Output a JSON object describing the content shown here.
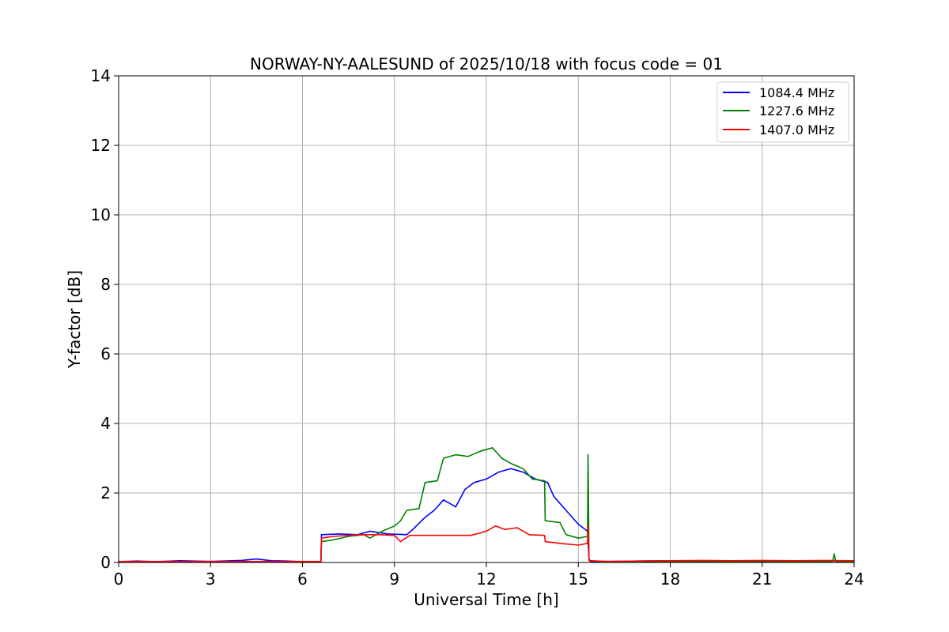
{
  "chart_data": {
    "type": "line",
    "title": "NORWAY-NY-AALESUND of 2025/10/18 with focus code = 01",
    "xlabel": "Universal Time [h]",
    "ylabel": "Y-factor [dB]",
    "xlim": [
      0,
      24
    ],
    "ylim": [
      0,
      14
    ],
    "xticks": [
      0,
      3,
      6,
      9,
      12,
      15,
      18,
      21,
      24
    ],
    "yticks": [
      0,
      2,
      4,
      6,
      8,
      10,
      12,
      14
    ],
    "xtick_labels": [
      "0",
      "3",
      "6",
      "9",
      "12",
      "15",
      "18",
      "21",
      "24"
    ],
    "ytick_labels": [
      "0",
      "2",
      "4",
      "6",
      "8",
      "10",
      "12",
      "14"
    ],
    "grid": true,
    "legend_position": "top-right",
    "series": [
      {
        "name": "1084.4 MHz",
        "color": "#0000ff",
        "points": [
          [
            0,
            0.02
          ],
          [
            0.6,
            0.04
          ],
          [
            1.2,
            0.02
          ],
          [
            2.0,
            0.05
          ],
          [
            3.0,
            0.03
          ],
          [
            4.0,
            0.06
          ],
          [
            4.5,
            0.1
          ],
          [
            5.0,
            0.05
          ],
          [
            5.5,
            0.04
          ],
          [
            6.0,
            0.02
          ],
          [
            6.6,
            0.02
          ],
          [
            6.62,
            0.8
          ],
          [
            7.2,
            0.82
          ],
          [
            7.8,
            0.8
          ],
          [
            8.2,
            0.9
          ],
          [
            8.8,
            0.82
          ],
          [
            9.4,
            0.8
          ],
          [
            9.6,
            0.95
          ],
          [
            10.0,
            1.3
          ],
          [
            10.3,
            1.5
          ],
          [
            10.6,
            1.8
          ],
          [
            11.0,
            1.6
          ],
          [
            11.3,
            2.1
          ],
          [
            11.6,
            2.3
          ],
          [
            12.0,
            2.4
          ],
          [
            12.4,
            2.6
          ],
          [
            12.8,
            2.7
          ],
          [
            13.2,
            2.6
          ],
          [
            13.6,
            2.4
          ],
          [
            14.0,
            2.3
          ],
          [
            14.2,
            1.9
          ],
          [
            14.6,
            1.5
          ],
          [
            15.0,
            1.1
          ],
          [
            15.3,
            0.9
          ],
          [
            15.35,
            0.1
          ],
          [
            15.4,
            0.03
          ],
          [
            16.0,
            0.03
          ],
          [
            17.0,
            0.04
          ],
          [
            18.0,
            0.05
          ],
          [
            19.0,
            0.04
          ],
          [
            20.0,
            0.05
          ],
          [
            21.0,
            0.04
          ],
          [
            22.0,
            0.05
          ],
          [
            23.0,
            0.04
          ],
          [
            24.0,
            0.05
          ]
        ]
      },
      {
        "name": "1227.6 MHz",
        "color": "#008000",
        "points": [
          [
            0,
            0.02
          ],
          [
            3.0,
            0.02
          ],
          [
            6.0,
            0.02
          ],
          [
            6.6,
            0.02
          ],
          [
            6.62,
            0.6
          ],
          [
            7.0,
            0.65
          ],
          [
            7.5,
            0.75
          ],
          [
            8.0,
            0.8
          ],
          [
            8.2,
            0.7
          ],
          [
            8.6,
            0.9
          ],
          [
            9.0,
            1.05
          ],
          [
            9.2,
            1.2
          ],
          [
            9.4,
            1.5
          ],
          [
            9.8,
            1.55
          ],
          [
            10.0,
            2.3
          ],
          [
            10.4,
            2.35
          ],
          [
            10.6,
            3.0
          ],
          [
            11.0,
            3.1
          ],
          [
            11.4,
            3.05
          ],
          [
            11.8,
            3.2
          ],
          [
            12.2,
            3.3
          ],
          [
            12.5,
            3.0
          ],
          [
            12.8,
            2.85
          ],
          [
            13.2,
            2.7
          ],
          [
            13.5,
            2.4
          ],
          [
            13.9,
            2.35
          ],
          [
            13.92,
            1.2
          ],
          [
            14.4,
            1.15
          ],
          [
            14.6,
            0.8
          ],
          [
            15.0,
            0.7
          ],
          [
            15.3,
            0.75
          ],
          [
            15.32,
            3.1
          ],
          [
            15.35,
            0.05
          ],
          [
            16.0,
            0.02
          ],
          [
            18.0,
            0.02
          ],
          [
            20.0,
            0.02
          ],
          [
            22.0,
            0.02
          ],
          [
            23.3,
            0.03
          ],
          [
            23.35,
            0.25
          ],
          [
            23.4,
            0.03
          ],
          [
            24.0,
            0.02
          ]
        ]
      },
      {
        "name": "1407.0 MHz",
        "color": "#ff0000",
        "points": [
          [
            0,
            0.03
          ],
          [
            2.0,
            0.03
          ],
          [
            4.0,
            0.03
          ],
          [
            6.0,
            0.03
          ],
          [
            6.6,
            0.03
          ],
          [
            6.62,
            0.7
          ],
          [
            7.0,
            0.75
          ],
          [
            7.5,
            0.78
          ],
          [
            8.0,
            0.8
          ],
          [
            8.5,
            0.8
          ],
          [
            9.0,
            0.78
          ],
          [
            9.2,
            0.6
          ],
          [
            9.5,
            0.78
          ],
          [
            10.0,
            0.78
          ],
          [
            11.0,
            0.78
          ],
          [
            11.5,
            0.78
          ],
          [
            12.0,
            0.9
          ],
          [
            12.3,
            1.05
          ],
          [
            12.6,
            0.95
          ],
          [
            13.0,
            1.0
          ],
          [
            13.4,
            0.8
          ],
          [
            13.9,
            0.78
          ],
          [
            13.92,
            0.6
          ],
          [
            14.4,
            0.55
          ],
          [
            15.0,
            0.5
          ],
          [
            15.3,
            0.55
          ],
          [
            15.32,
            1.05
          ],
          [
            15.35,
            0.05
          ],
          [
            16.0,
            0.03
          ],
          [
            17.0,
            0.04
          ],
          [
            18.0,
            0.05
          ],
          [
            19.0,
            0.06
          ],
          [
            20.0,
            0.05
          ],
          [
            21.0,
            0.06
          ],
          [
            22.0,
            0.05
          ],
          [
            23.0,
            0.06
          ],
          [
            24.0,
            0.05
          ]
        ]
      }
    ]
  }
}
